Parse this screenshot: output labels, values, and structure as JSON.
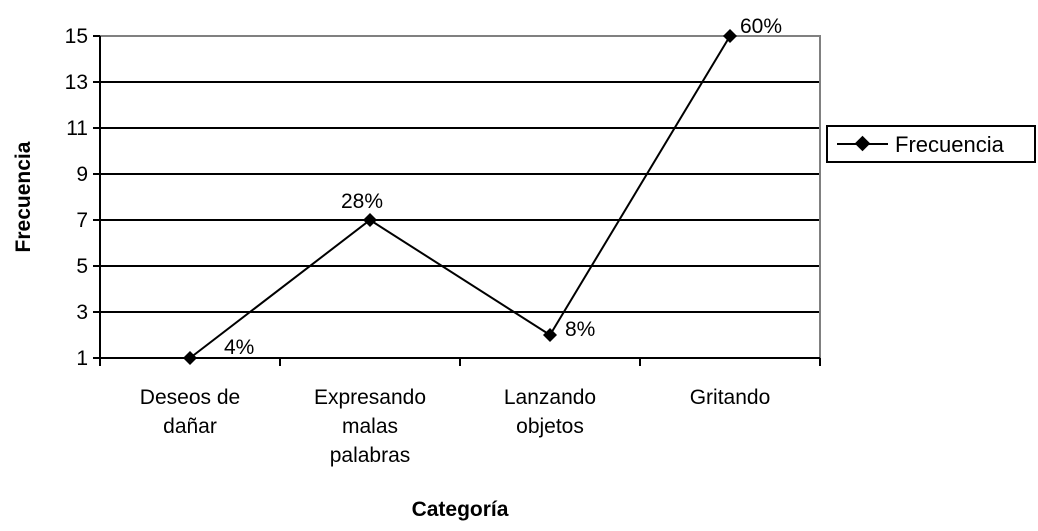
{
  "chart_data": {
    "type": "line",
    "categories": [
      [
        "Deseos de",
        "dañar"
      ],
      [
        "Expresando",
        "malas",
        "palabras"
      ],
      [
        "Lanzando",
        "objetos"
      ],
      [
        "Gritando"
      ]
    ],
    "series": [
      {
        "name": "Frecuencia",
        "values": [
          1,
          7,
          2,
          15
        ],
        "data_labels": [
          "4%",
          "28%",
          "8%",
          "60%"
        ]
      }
    ],
    "xlabel": "Categoría",
    "ylabel": "Frecuencia",
    "ylim": [
      1,
      15
    ],
    "yticks": [
      1,
      3,
      5,
      7,
      9,
      11,
      13,
      15
    ],
    "grid": true,
    "legend": "right",
    "colors": {
      "line": "#000000",
      "grid": "#000000",
      "plot_border": "#808080",
      "text": "#000000"
    }
  }
}
